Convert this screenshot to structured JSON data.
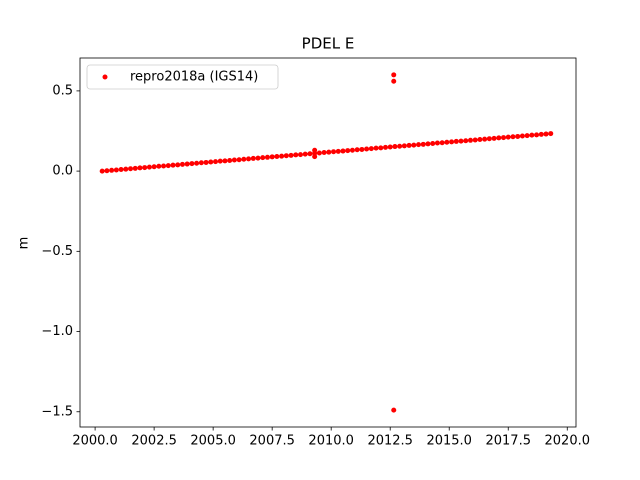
{
  "chart_data": {
    "type": "scatter",
    "title": "PDEL E",
    "ylabel": "m",
    "x": [
      2000.3,
      2000.5,
      2000.7,
      2000.9,
      2001.1,
      2001.3,
      2001.5,
      2001.7,
      2001.9,
      2002.1,
      2002.3,
      2002.5,
      2002.7,
      2002.9,
      2003.1,
      2003.3,
      2003.5,
      2003.7,
      2003.9,
      2004.1,
      2004.3,
      2004.5,
      2004.7,
      2004.9,
      2005.1,
      2005.3,
      2005.5,
      2005.7,
      2005.9,
      2006.1,
      2006.3,
      2006.5,
      2006.7,
      2006.9,
      2007.1,
      2007.3,
      2007.5,
      2007.7,
      2007.9,
      2008.1,
      2008.3,
      2008.5,
      2008.7,
      2008.9,
      2009.1,
      2009.3,
      2009.5,
      2009.7,
      2009.9,
      2010.1,
      2010.3,
      2010.5,
      2010.7,
      2010.9,
      2011.1,
      2011.3,
      2011.5,
      2011.7,
      2011.9,
      2012.1,
      2012.3,
      2012.5,
      2012.7,
      2012.9,
      2013.1,
      2013.3,
      2013.5,
      2013.7,
      2013.9,
      2014.1,
      2014.3,
      2014.5,
      2014.7,
      2014.9,
      2015.1,
      2015.3,
      2015.5,
      2015.7,
      2015.9,
      2016.1,
      2016.3,
      2016.5,
      2016.7,
      2016.9,
      2017.1,
      2017.3,
      2017.5,
      2017.7,
      2017.9,
      2018.1,
      2018.3,
      2018.5,
      2018.7,
      2018.9,
      2019.1,
      2019.3,
      2009.3,
      2009.3,
      2012.65,
      2012.65,
      2012.65
    ],
    "series": [
      {
        "name": "repro2018a (IGS14)",
        "color": "#ff0000",
        "values": [
          0.0,
          0.002,
          0.005,
          0.007,
          0.01,
          0.012,
          0.015,
          0.017,
          0.02,
          0.022,
          0.025,
          0.027,
          0.03,
          0.032,
          0.034,
          0.037,
          0.039,
          0.042,
          0.044,
          0.047,
          0.049,
          0.052,
          0.054,
          0.057,
          0.059,
          0.062,
          0.064,
          0.066,
          0.069,
          0.071,
          0.074,
          0.076,
          0.079,
          0.081,
          0.084,
          0.086,
          0.089,
          0.091,
          0.093,
          0.096,
          0.098,
          0.101,
          0.103,
          0.106,
          0.108,
          0.111,
          0.113,
          0.116,
          0.118,
          0.121,
          0.123,
          0.125,
          0.128,
          0.13,
          0.133,
          0.135,
          0.138,
          0.14,
          0.143,
          0.145,
          0.148,
          0.15,
          0.153,
          0.155,
          0.157,
          0.16,
          0.162,
          0.165,
          0.167,
          0.17,
          0.172,
          0.175,
          0.177,
          0.18,
          0.182,
          0.185,
          0.187,
          0.189,
          0.192,
          0.194,
          0.197,
          0.199,
          0.202,
          0.204,
          0.207,
          0.209,
          0.212,
          0.214,
          0.216,
          0.219,
          0.221,
          0.224,
          0.226,
          0.229,
          0.231,
          0.234,
          0.13,
          0.09,
          0.6,
          0.56,
          -1.49
        ]
      }
    ],
    "xlim": [
      1999.36,
      2020.37
    ],
    "ylim": [
      -1.595,
      0.705
    ],
    "xticks": [
      {
        "value": 2000,
        "label": "2000.0"
      },
      {
        "value": 2002.5,
        "label": "2002.5"
      },
      {
        "value": 2005,
        "label": "2005.0"
      },
      {
        "value": 2007.5,
        "label": "2007.5"
      },
      {
        "value": 2010,
        "label": "2010.0"
      },
      {
        "value": 2012.5,
        "label": "2012.5"
      },
      {
        "value": 2015,
        "label": "2015.0"
      },
      {
        "value": 2017.5,
        "label": "2017.5"
      },
      {
        "value": 2020,
        "label": "2020.0"
      }
    ],
    "yticks": [
      {
        "value": -1.5,
        "label": "−1.5"
      },
      {
        "value": -1.0,
        "label": "−1.0"
      },
      {
        "value": -0.5,
        "label": "−0.5"
      },
      {
        "value": 0,
        "label": "0.0"
      },
      0.5
    ],
    "legend": "upper left",
    "grid": false
  }
}
